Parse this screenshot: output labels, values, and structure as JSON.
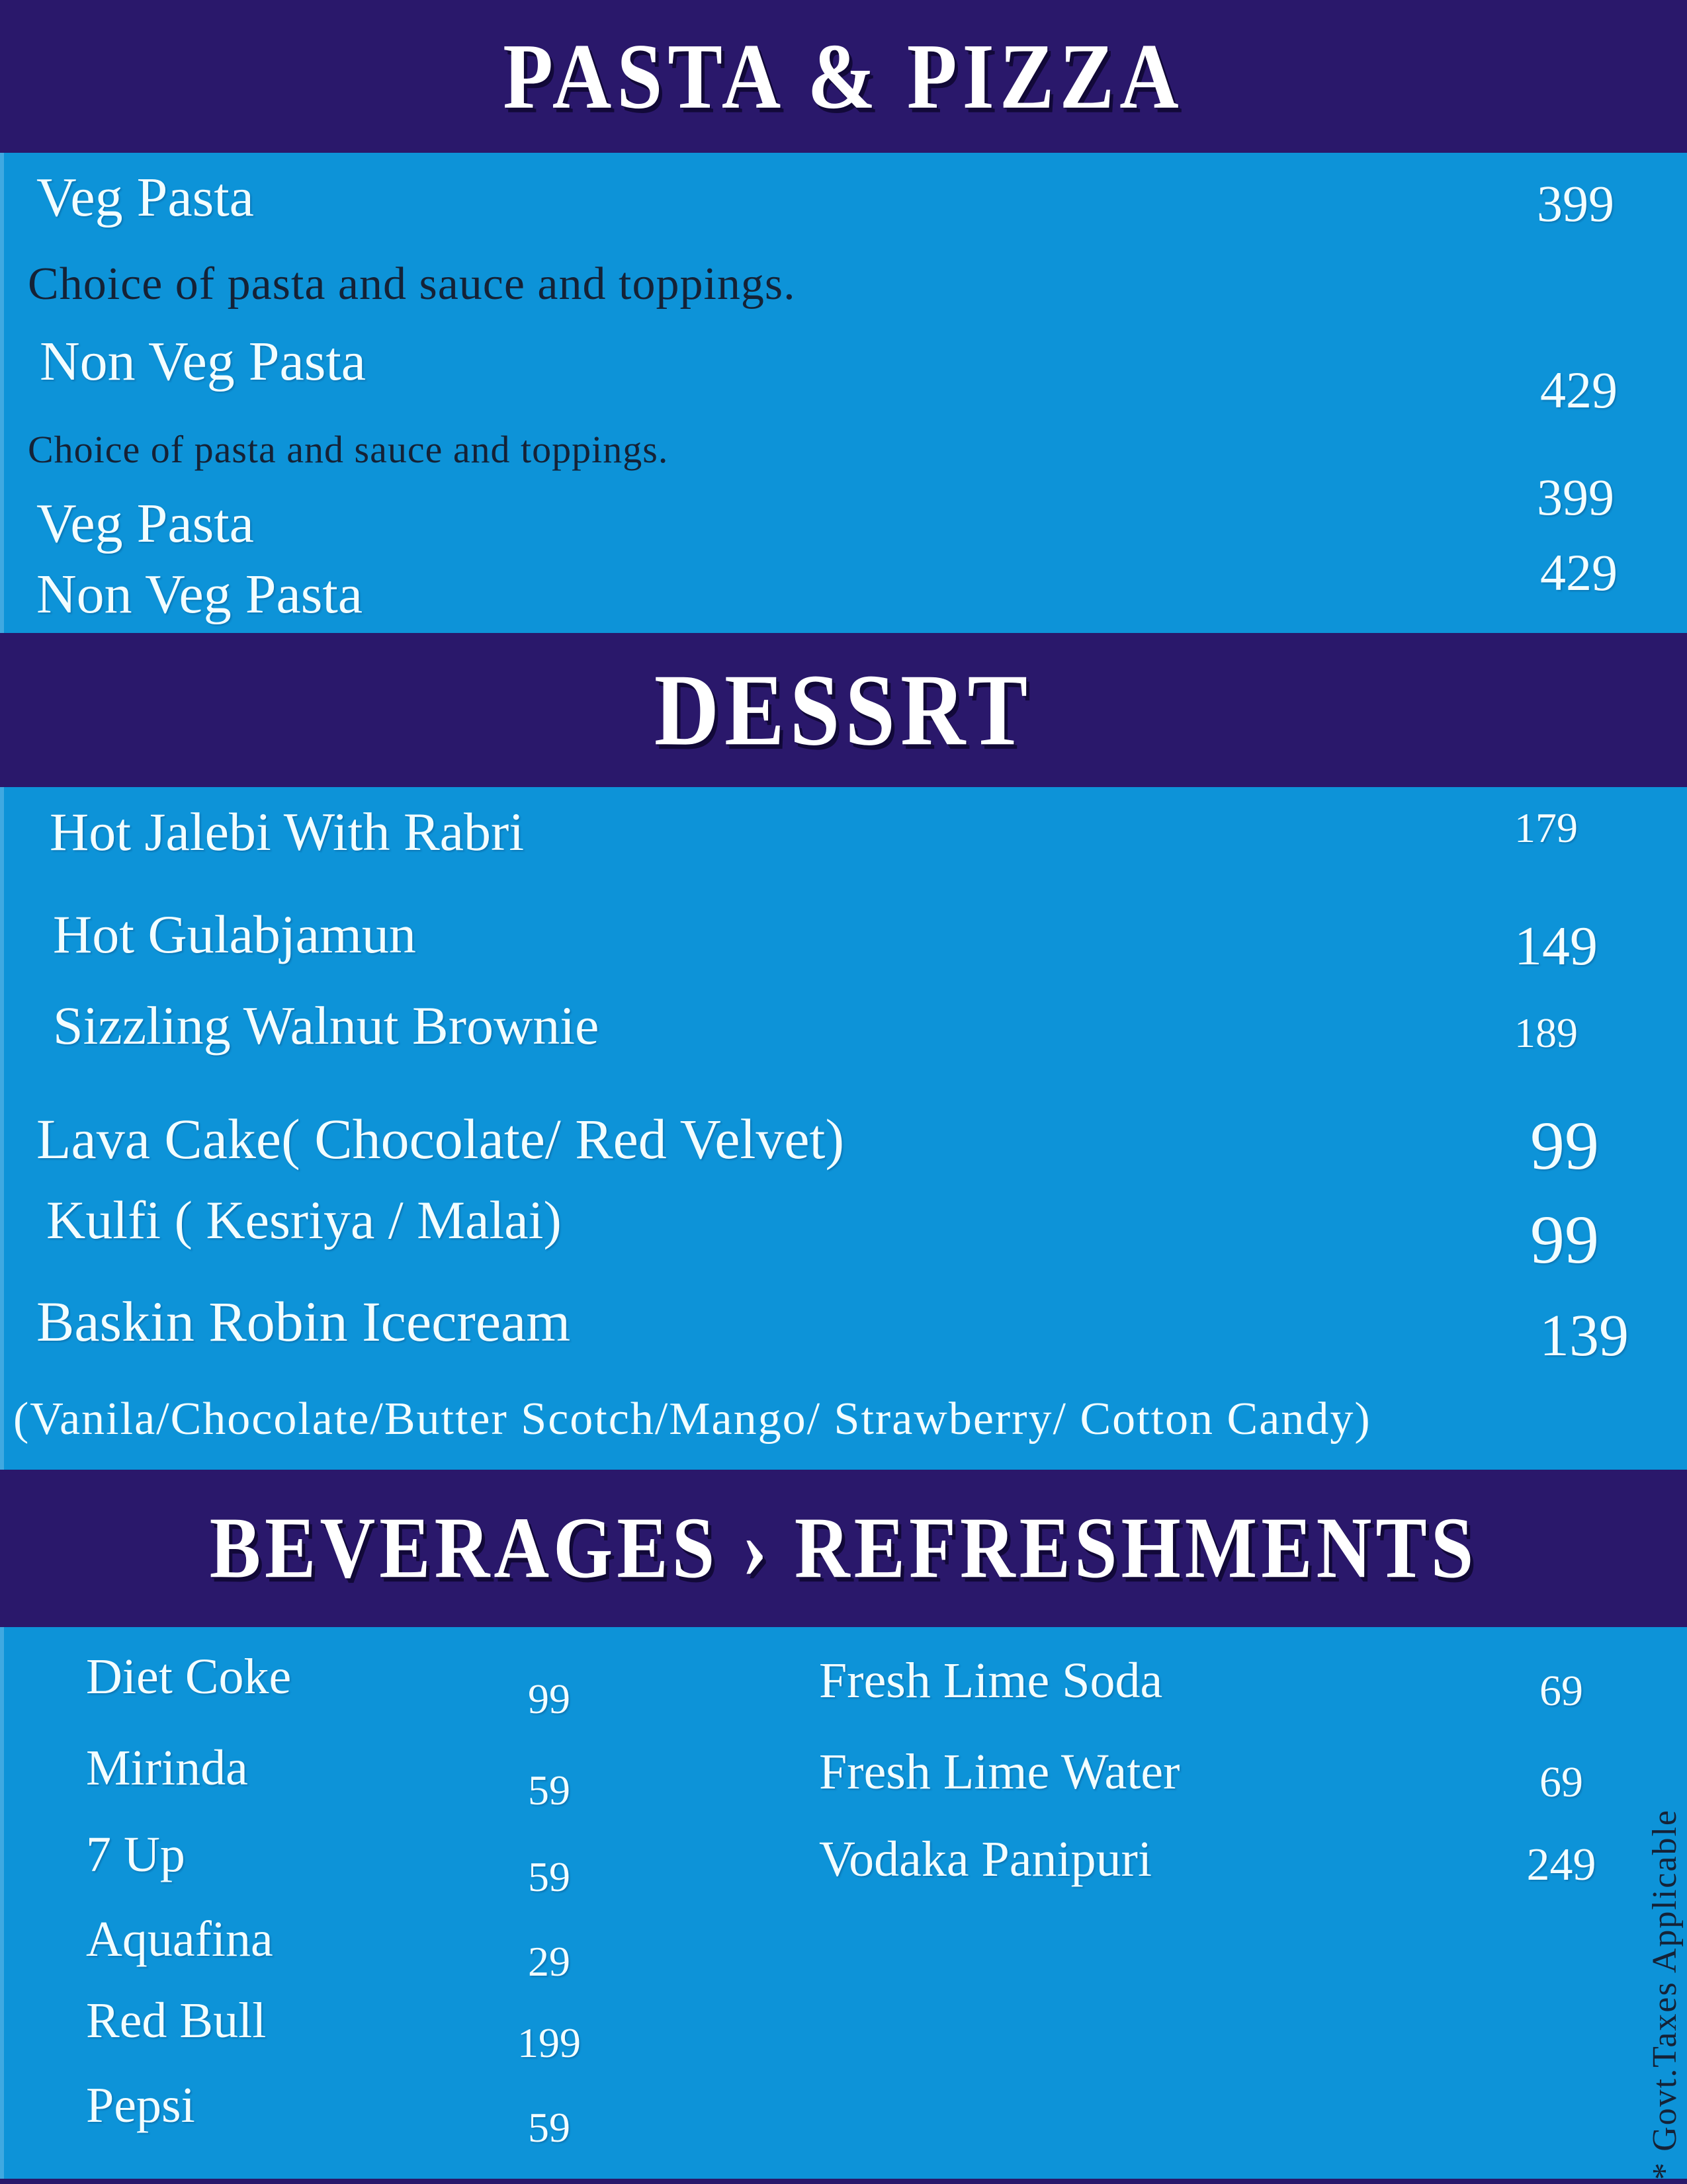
{
  "page": {
    "taxes_note": "* Govt.Taxes Applicable"
  },
  "colors": {
    "header_bar": "#2A186B",
    "background": "#0D93D8",
    "edge_highlight": "#3FA9E1",
    "item_text": "#F2FDFF",
    "description_text": "#152236"
  },
  "sections": [
    {
      "title": "PASTA & PIZZA",
      "items": [
        {
          "name": "Veg Pasta",
          "price": "399",
          "description": "Choice of pasta and sauce and toppings."
        },
        {
          "name": "Non Veg Pasta",
          "price": "429",
          "description": "Choice of pasta and sauce and toppings."
        },
        {
          "name": "Veg Pasta",
          "price": "399"
        },
        {
          "name": "Non Veg Pasta",
          "price": "429"
        }
      ]
    },
    {
      "title": "DESSRT",
      "items": [
        {
          "name": "Hot Jalebi With Rabri",
          "price": "179"
        },
        {
          "name": "Hot Gulabjamun",
          "price": "149"
        },
        {
          "name": "Sizzling Walnut Brownie",
          "price": "189"
        },
        {
          "name": "Lava Cake( Chocolate/ Red Velvet)",
          "price": "99"
        },
        {
          "name": "Kulfi ( Kesriya / Malai)",
          "price": "99"
        },
        {
          "name": "Baskin Robin Icecream",
          "price": "139",
          "note": "(Vanila/Chocolate/Butter Scotch/Mango/ Strawberry/ Cotton Candy)"
        }
      ]
    },
    {
      "title": "BEVERAGES › REFRESHMENTS",
      "columns": {
        "left": [
          {
            "name": "Diet Coke",
            "price": "99"
          },
          {
            "name": "Mirinda",
            "price": "59"
          },
          {
            "name": "7 Up",
            "price": "59"
          },
          {
            "name": "Aquafina",
            "price": "29"
          },
          {
            "name": "Red Bull",
            "price": "199"
          },
          {
            "name": "Pepsi",
            "price": "59"
          }
        ],
        "right": [
          {
            "name": "Fresh Lime Soda",
            "price": "69"
          },
          {
            "name": "Fresh Lime Water",
            "price": "69"
          },
          {
            "name": "Vodaka Panipuri",
            "price": "249"
          }
        ]
      }
    }
  ]
}
